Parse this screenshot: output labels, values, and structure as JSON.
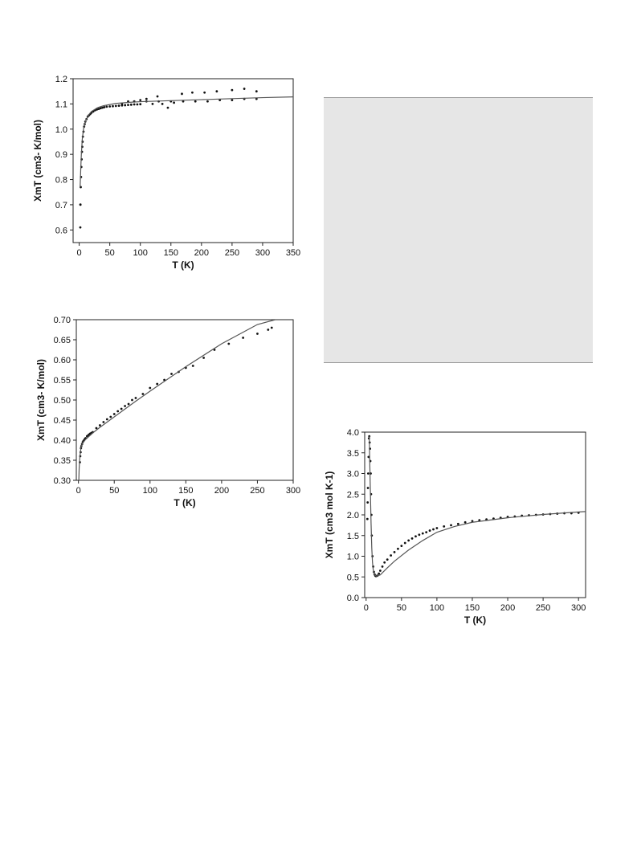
{
  "chart_data": [
    {
      "type": "scatter",
      "title": "",
      "xlabel": "T (K)",
      "ylabel": "XmT (cm3- K/mol)",
      "xlim": [
        -10,
        350
      ],
      "ylim": [
        0.55,
        1.2
      ],
      "xticks": [
        0,
        50,
        100,
        150,
        200,
        250,
        300,
        350
      ],
      "yticks": [
        0.6,
        0.7,
        0.8,
        0.9,
        1.0,
        1.1,
        1.2
      ],
      "ytick_labels": [
        "0.6",
        "0.7",
        "0.8",
        "0.9",
        "1.0",
        "1.1",
        "1.2"
      ],
      "grid": false,
      "series": [
        {
          "kind": "points",
          "x": [
            1.8,
            2,
            2,
            2.5,
            3,
            3.5,
            4,
            4.5,
            5,
            5.5,
            6,
            7,
            8,
            9,
            10,
            12,
            14,
            16,
            18,
            20,
            23,
            26,
            29,
            32,
            35,
            38,
            41,
            45,
            50,
            55,
            60,
            65,
            70,
            75,
            80,
            85,
            90,
            95,
            100,
            70,
            80,
            90,
            100,
            110,
            120,
            128,
            136,
            145,
            155,
            168,
            185,
            205,
            225,
            250,
            270,
            290,
            90,
            110,
            130,
            150,
            170,
            190,
            210,
            230,
            250,
            270,
            290
          ],
          "y": [
            0.61,
            0.7,
            0.701,
            0.77,
            0.81,
            0.85,
            0.88,
            0.91,
            0.93,
            0.95,
            0.97,
            0.99,
            1.01,
            1.02,
            1.03,
            1.04,
            1.05,
            1.055,
            1.06,
            1.065,
            1.07,
            1.075,
            1.078,
            1.08,
            1.083,
            1.085,
            1.087,
            1.089,
            1.09,
            1.091,
            1.092,
            1.093,
            1.094,
            1.095,
            1.096,
            1.097,
            1.098,
            1.098,
            1.099,
            1.1,
            1.11,
            1.11,
            1.115,
            1.12,
            1.1,
            1.13,
            1.1,
            1.085,
            1.105,
            1.14,
            1.145,
            1.145,
            1.15,
            1.155,
            1.16,
            1.15,
            1.11,
            1.11,
            1.11,
            1.11,
            1.11,
            1.11,
            1.11,
            1.115,
            1.115,
            1.12,
            1.12
          ]
        },
        {
          "kind": "line",
          "x": [
            1.5,
            2.5,
            3.5,
            5,
            7,
            10,
            15,
            20,
            30,
            40,
            60,
            80,
            100,
            150,
            200,
            250,
            300,
            350
          ],
          "y": [
            0.77,
            0.84,
            0.9,
            0.96,
            1.0,
            1.03,
            1.055,
            1.07,
            1.085,
            1.093,
            1.102,
            1.106,
            1.109,
            1.113,
            1.117,
            1.121,
            1.125,
            1.128
          ]
        }
      ]
    },
    {
      "type": "scatter",
      "title": "",
      "xlabel": "T (K)",
      "ylabel": "XmT (cm3- K/mol)",
      "xlim": [
        -3,
        300
      ],
      "ylim": [
        0.3,
        0.7
      ],
      "xticks": [
        0,
        50,
        100,
        150,
        200,
        250,
        300
      ],
      "yticks": [
        0.3,
        0.35,
        0.4,
        0.45,
        0.5,
        0.55,
        0.6,
        0.65,
        0.7
      ],
      "ytick_labels": [
        "0.30",
        "0.35",
        "0.40",
        "0.45",
        "0.50",
        "0.55",
        "0.60",
        "0.65",
        "0.70"
      ],
      "grid": false,
      "series": [
        {
          "kind": "points",
          "x": [
            2,
            2.5,
            3,
            3.5,
            4,
            5,
            6,
            7,
            8,
            9,
            10,
            12,
            14,
            16,
            18,
            20,
            25,
            30,
            35,
            40,
            45,
            50,
            55,
            60,
            65,
            70,
            75,
            80,
            90,
            100,
            110,
            120,
            130,
            140,
            150,
            160,
            175,
            190,
            210,
            230,
            250,
            265,
            270
          ],
          "y": [
            0.345,
            0.36,
            0.37,
            0.38,
            0.385,
            0.39,
            0.395,
            0.398,
            0.4,
            0.403,
            0.405,
            0.41,
            0.413,
            0.416,
            0.418,
            0.42,
            0.43,
            0.437,
            0.445,
            0.452,
            0.458,
            0.465,
            0.472,
            0.478,
            0.485,
            0.49,
            0.5,
            0.505,
            0.515,
            0.53,
            0.54,
            0.55,
            0.565,
            0.57,
            0.58,
            0.585,
            0.605,
            0.625,
            0.64,
            0.655,
            0.665,
            0.675,
            0.68
          ]
        },
        {
          "kind": "line",
          "x": [
            0.5,
            1,
            2,
            3,
            4,
            6,
            8,
            10,
            15,
            20,
            30,
            50,
            80,
            100,
            150,
            200,
            250,
            275
          ],
          "y": [
            0.3,
            0.33,
            0.36,
            0.375,
            0.385,
            0.393,
            0.398,
            0.402,
            0.41,
            0.418,
            0.432,
            0.458,
            0.497,
            0.522,
            0.583,
            0.64,
            0.688,
            0.7
          ]
        }
      ]
    },
    {
      "type": "scatter",
      "title": "",
      "xlabel": "T (K)",
      "ylabel": "XmT (cm3 mol K-1)",
      "xlim": [
        -2,
        310
      ],
      "ylim": [
        0,
        4
      ],
      "xticks": [
        0,
        50,
        100,
        150,
        200,
        250,
        300
      ],
      "yticks": [
        0,
        0.5,
        1.0,
        1.5,
        2.0,
        2.5,
        3.0,
        3.5,
        4.0
      ],
      "ytick_labels": [
        "0.0",
        "0.5",
        "1.0",
        "1.5",
        "2.0",
        "2.5",
        "3.0",
        "3.5",
        "4.0"
      ],
      "grid": false,
      "series": [
        {
          "kind": "points",
          "x": [
            1.8,
            2.2,
            2.6,
            3,
            3.5,
            4,
            4.5,
            5,
            5.5,
            6,
            6.5,
            7,
            7.5,
            8,
            9,
            10,
            11,
            12,
            13,
            14,
            16,
            18,
            20,
            23,
            26,
            30,
            35,
            40,
            45,
            50,
            55,
            60,
            65,
            70,
            75,
            80,
            85,
            90,
            95,
            100,
            110,
            120,
            130,
            140,
            150,
            160,
            170,
            180,
            190,
            200,
            210,
            220,
            230,
            240,
            250,
            260,
            270,
            280,
            290,
            300
          ],
          "y": [
            1.9,
            2.3,
            2.65,
            3.0,
            3.4,
            3.85,
            3.9,
            3.75,
            3.6,
            3.3,
            3.0,
            2.5,
            2.0,
            1.5,
            1.0,
            0.75,
            0.62,
            0.56,
            0.53,
            0.52,
            0.53,
            0.58,
            0.65,
            0.75,
            0.85,
            0.92,
            1.02,
            1.1,
            1.18,
            1.25,
            1.32,
            1.38,
            1.43,
            1.48,
            1.52,
            1.55,
            1.58,
            1.62,
            1.65,
            1.68,
            1.72,
            1.75,
            1.78,
            1.82,
            1.85,
            1.87,
            1.89,
            1.91,
            1.93,
            1.95,
            1.96,
            1.98,
            1.99,
            2.0,
            2.01,
            2.02,
            2.03,
            2.04,
            2.04,
            2.05
          ]
        },
        {
          "kind": "line",
          "x": [
            4.5,
            5,
            6,
            7,
            8,
            9,
            10,
            12,
            15,
            20,
            30,
            40,
            60,
            80,
            100,
            125,
            150,
            200,
            250,
            300,
            310
          ],
          "y": [
            3.9,
            3.4,
            2.6,
            1.8,
            1.2,
            0.85,
            0.68,
            0.55,
            0.52,
            0.55,
            0.72,
            0.88,
            1.15,
            1.38,
            1.58,
            1.72,
            1.82,
            1.93,
            2.01,
            2.07,
            2.08
          ]
        }
      ]
    }
  ]
}
